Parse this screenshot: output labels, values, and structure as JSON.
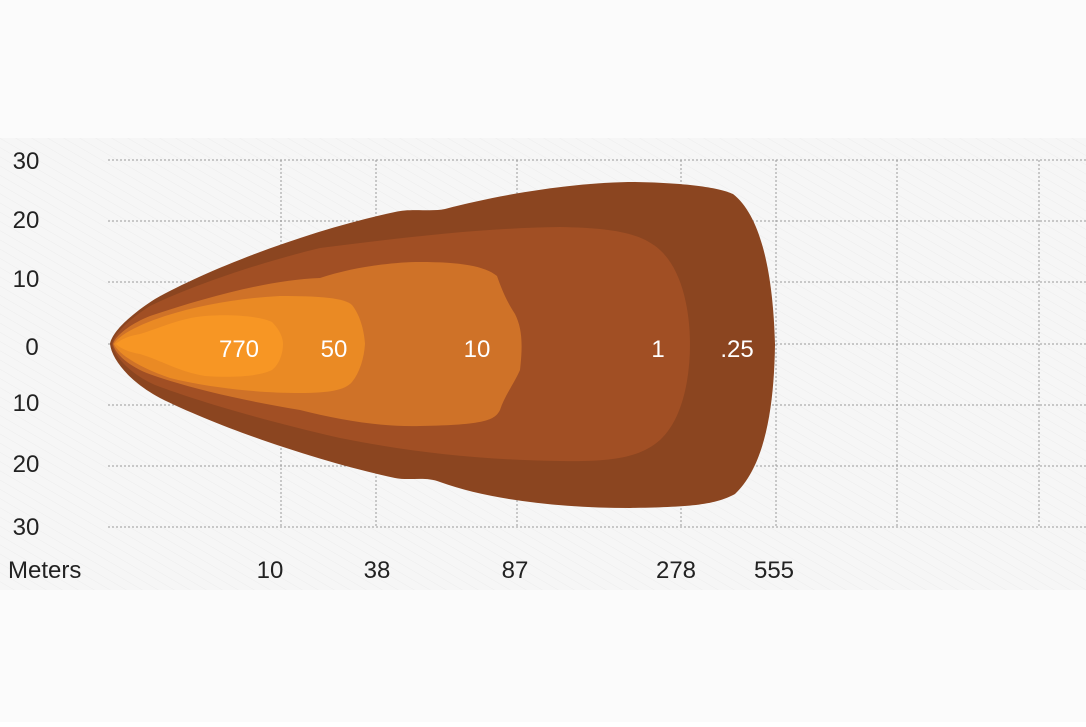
{
  "chart_data": {
    "type": "area",
    "title": "",
    "xlabel": "Meters",
    "ylabel": "",
    "x_ticks": [
      "10",
      "38",
      "87",
      "278",
      "555"
    ],
    "y_ticks": [
      "30",
      "20",
      "10",
      "0",
      "10",
      "20",
      "30"
    ],
    "ylim": [
      -30,
      30
    ],
    "grid": true,
    "legend": "none",
    "zones": [
      {
        "label": ".25",
        "reach": "555",
        "color": "#8b4520"
      },
      {
        "label": "1",
        "reach": "278",
        "color": "#a14f24"
      },
      {
        "label": "10",
        "reach": "87",
        "color": "#cf7228"
      },
      {
        "label": "50",
        "reach": "38",
        "color": "#ea8a24"
      },
      {
        "label": "770",
        "reach": "10",
        "color": "#f79624"
      }
    ]
  },
  "colors": {
    "background": "#ffffff",
    "plot_texture": "#f4f4f4",
    "grid": "#9a9a9a",
    "axis_text": "#222222",
    "zone_label": "#ffffff"
  }
}
